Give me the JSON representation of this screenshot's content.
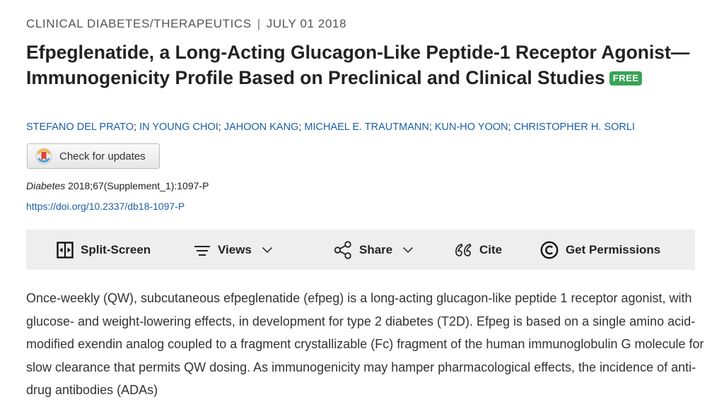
{
  "article": {
    "category": "CLINICAL DIABETES/THERAPEUTICS",
    "separator": "|",
    "date": "JULY 01 2018",
    "title": "Efpeglenatide, a Long-Acting Glucagon-Like Peptide-1 Receptor Agonist—Immunogenicity Profile Based on Preclinical and Clinical Studies",
    "free_badge": "FREE",
    "authors": [
      "STEFANO DEL PRATO",
      "IN YOUNG CHOI",
      "JAHOON KANG",
      "MICHAEL E. TRAUTMANN",
      "KUN-HO YOON",
      "CHRISTOPHER H. SORLI"
    ],
    "author_separator": ";",
    "check_updates_label": "Check for updates",
    "journal": "Diabetes",
    "citation_rest": " 2018;67(Supplement_1):1097-P",
    "doi": "https://doi.org/10.2337/db18-1097-P"
  },
  "toolbar": {
    "split_screen": "Split-Screen",
    "views": "Views",
    "share": "Share",
    "cite": "Cite",
    "permissions": "Get Permissions"
  },
  "abstract": {
    "text": "Once-weekly (QW), subcutaneous efpeglenatide (efpeg) is a long-acting glucagon-like peptide 1 receptor agonist, with glucose- and weight-lowering effects, in development for type 2 diabetes (T2D). Efpeg is based on a single amino acid-modified exendin analog coupled to a fragment crystallizable (Fc) fragment of the human immunoglobulin G molecule for slow clearance that permits QW dosing. As immunogenicity may hamper pharmacological effects, the incidence of anti-drug antibodies (ADAs)"
  },
  "icons": {
    "split_screen": "split-screen-icon",
    "views": "menu-lines-icon",
    "share": "share-icon",
    "cite": "quote-icon",
    "permissions": "copyright-icon",
    "check_updates": "crossmark-icon",
    "dropdown": "chevron-down-icon"
  },
  "colors": {
    "link": "#1a5fa6",
    "free_badge": "#3aa356",
    "toolbar_bg": "#eeeeee"
  }
}
